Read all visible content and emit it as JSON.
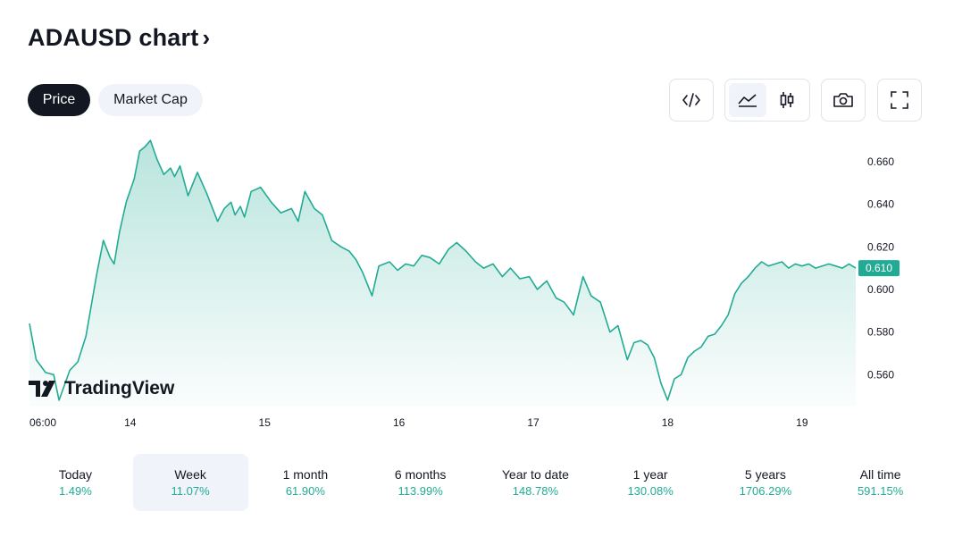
{
  "header": {
    "title": "ADAUSD chart",
    "chevron": "›"
  },
  "tabs": [
    {
      "label": "Price",
      "active": true
    },
    {
      "label": "Market Cap",
      "active": false
    }
  ],
  "toolbar": {
    "embed_icon": "code-icon",
    "line_icon": "area-chart-icon",
    "candle_icon": "candlestick-icon",
    "camera_icon": "camera-icon",
    "fullscreen_icon": "fullscreen-icon"
  },
  "brand": {
    "name": "TradingView"
  },
  "colors": {
    "line": "#22ab94",
    "accent_text": "#22ab94",
    "dark": "#131722",
    "pill_bg": "#f0f3fa"
  },
  "periods": [
    {
      "label": "Today",
      "change": "1.49%"
    },
    {
      "label": "Week",
      "change": "11.07%",
      "active": true
    },
    {
      "label": "1 month",
      "change": "61.90%"
    },
    {
      "label": "6 months",
      "change": "113.99%"
    },
    {
      "label": "Year to date",
      "change": "148.78%"
    },
    {
      "label": "1 year",
      "change": "130.08%"
    },
    {
      "label": "5 years",
      "change": "1706.29%"
    },
    {
      "label": "All time",
      "change": "591.15%"
    }
  ],
  "chart_data": {
    "type": "area",
    "title": "ADAUSD",
    "x_tick_labels": [
      "06:00",
      "14",
      "15",
      "16",
      "17",
      "18",
      "19"
    ],
    "x_tick_positions_days": [
      0,
      0.75,
      1.75,
      2.75,
      3.75,
      4.75,
      5.75
    ],
    "y_ticks": [
      0.56,
      0.58,
      0.6,
      0.62,
      0.64,
      0.66
    ],
    "y_tick_labels": [
      "0.560",
      "0.580",
      "0.600",
      "0.620",
      "0.640",
      "0.660"
    ],
    "ylim": [
      0.545,
      0.673
    ],
    "xlim": [
      0,
      6.15
    ],
    "last_value": 0.61,
    "last_value_label": "0.610",
    "series": [
      {
        "name": "ADAUSD",
        "x": [
          0,
          0.05,
          0.12,
          0.18,
          0.22,
          0.3,
          0.36,
          0.42,
          0.5,
          0.55,
          0.6,
          0.63,
          0.67,
          0.72,
          0.78,
          0.82,
          0.86,
          0.9,
          0.95,
          1.0,
          1.05,
          1.08,
          1.12,
          1.18,
          1.25,
          1.32,
          1.4,
          1.45,
          1.5,
          1.53,
          1.57,
          1.6,
          1.65,
          1.72,
          1.8,
          1.87,
          1.95,
          2.0,
          2.05,
          2.12,
          2.18,
          2.25,
          2.32,
          2.38,
          2.43,
          2.48,
          2.55,
          2.6,
          2.68,
          2.74,
          2.8,
          2.86,
          2.92,
          2.98,
          3.05,
          3.12,
          3.18,
          3.25,
          3.32,
          3.38,
          3.45,
          3.52,
          3.58,
          3.65,
          3.72,
          3.78,
          3.85,
          3.92,
          3.98,
          4.05,
          4.12,
          4.18,
          4.25,
          4.32,
          4.38,
          4.45,
          4.5,
          4.55,
          4.6,
          4.65,
          4.7,
          4.75,
          4.8,
          4.85,
          4.9,
          4.95,
          5.0,
          5.05,
          5.1,
          5.15,
          5.2,
          5.25,
          5.3,
          5.35,
          5.4,
          5.45,
          5.5,
          5.55,
          5.6,
          5.65,
          5.7,
          5.75,
          5.8,
          5.85,
          5.9,
          5.95,
          6.0,
          6.05,
          6.1,
          6.15
        ],
        "values": [
          0.584,
          0.567,
          0.561,
          0.56,
          0.548,
          0.562,
          0.566,
          0.578,
          0.607,
          0.623,
          0.615,
          0.612,
          0.627,
          0.641,
          0.652,
          0.665,
          0.667,
          0.67,
          0.661,
          0.654,
          0.657,
          0.653,
          0.658,
          0.644,
          0.655,
          0.645,
          0.632,
          0.638,
          0.641,
          0.635,
          0.639,
          0.634,
          0.646,
          0.648,
          0.641,
          0.636,
          0.638,
          0.632,
          0.646,
          0.638,
          0.635,
          0.623,
          0.62,
          0.618,
          0.614,
          0.608,
          0.597,
          0.611,
          0.613,
          0.609,
          0.612,
          0.611,
          0.616,
          0.615,
          0.612,
          0.619,
          0.622,
          0.618,
          0.613,
          0.61,
          0.612,
          0.606,
          0.61,
          0.605,
          0.606,
          0.6,
          0.604,
          0.596,
          0.594,
          0.588,
          0.606,
          0.597,
          0.594,
          0.58,
          0.583,
          0.567,
          0.575,
          0.576,
          0.574,
          0.568,
          0.556,
          0.548,
          0.558,
          0.56,
          0.568,
          0.571,
          0.573,
          0.578,
          0.579,
          0.583,
          0.588,
          0.598,
          0.603,
          0.606,
          0.61,
          0.613,
          0.611,
          0.612,
          0.613,
          0.61,
          0.612,
          0.611,
          0.612,
          0.61,
          0.611,
          0.612,
          0.611,
          0.61,
          0.612,
          0.61
        ]
      }
    ]
  }
}
